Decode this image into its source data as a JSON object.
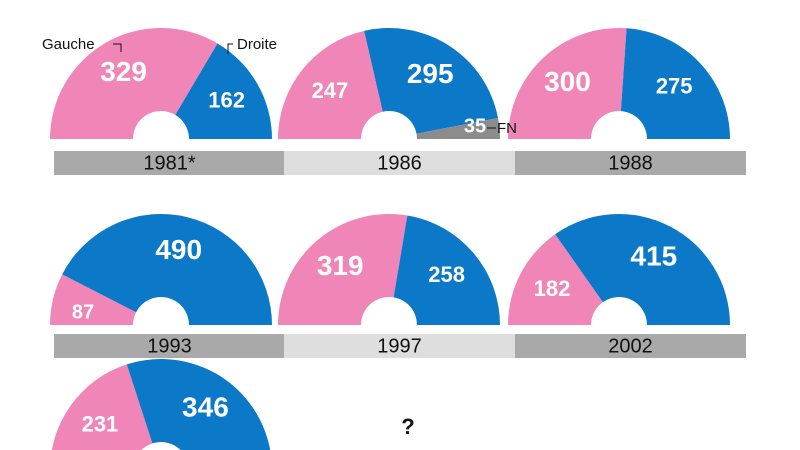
{
  "colors": {
    "gauche": "#f086b8",
    "droite": "#0b78c8",
    "fn": "#8c8c8c",
    "band_dark": "#a9a9a9",
    "band_light": "#dedede",
    "text": "#111111"
  },
  "legend": {
    "gauche": "Gauche",
    "droite": "Droite",
    "fn": "FN"
  },
  "unknown_label": "?",
  "chart_data": {
    "type": "semicircle-parliament",
    "series_names": [
      "Gauche",
      "Droite",
      "FN"
    ],
    "elections": [
      {
        "year": "1981*",
        "band": "dark",
        "gauche": 329,
        "droite": 162,
        "fn": null
      },
      {
        "year": "1986",
        "band": "light",
        "gauche": 247,
        "droite": 295,
        "fn": 35
      },
      {
        "year": "1988",
        "band": "dark",
        "gauche": 300,
        "droite": 275,
        "fn": null
      },
      {
        "year": "1993",
        "band": "dark",
        "gauche": 87,
        "droite": 490,
        "fn": null
      },
      {
        "year": "1997",
        "band": "light",
        "gauche": 319,
        "droite": 258,
        "fn": null
      },
      {
        "year": "2002",
        "band": "dark",
        "gauche": 182,
        "droite": 415,
        "fn": null
      },
      {
        "year": "",
        "band": "none",
        "gauche": 231,
        "droite": 346,
        "fn": null
      }
    ]
  }
}
